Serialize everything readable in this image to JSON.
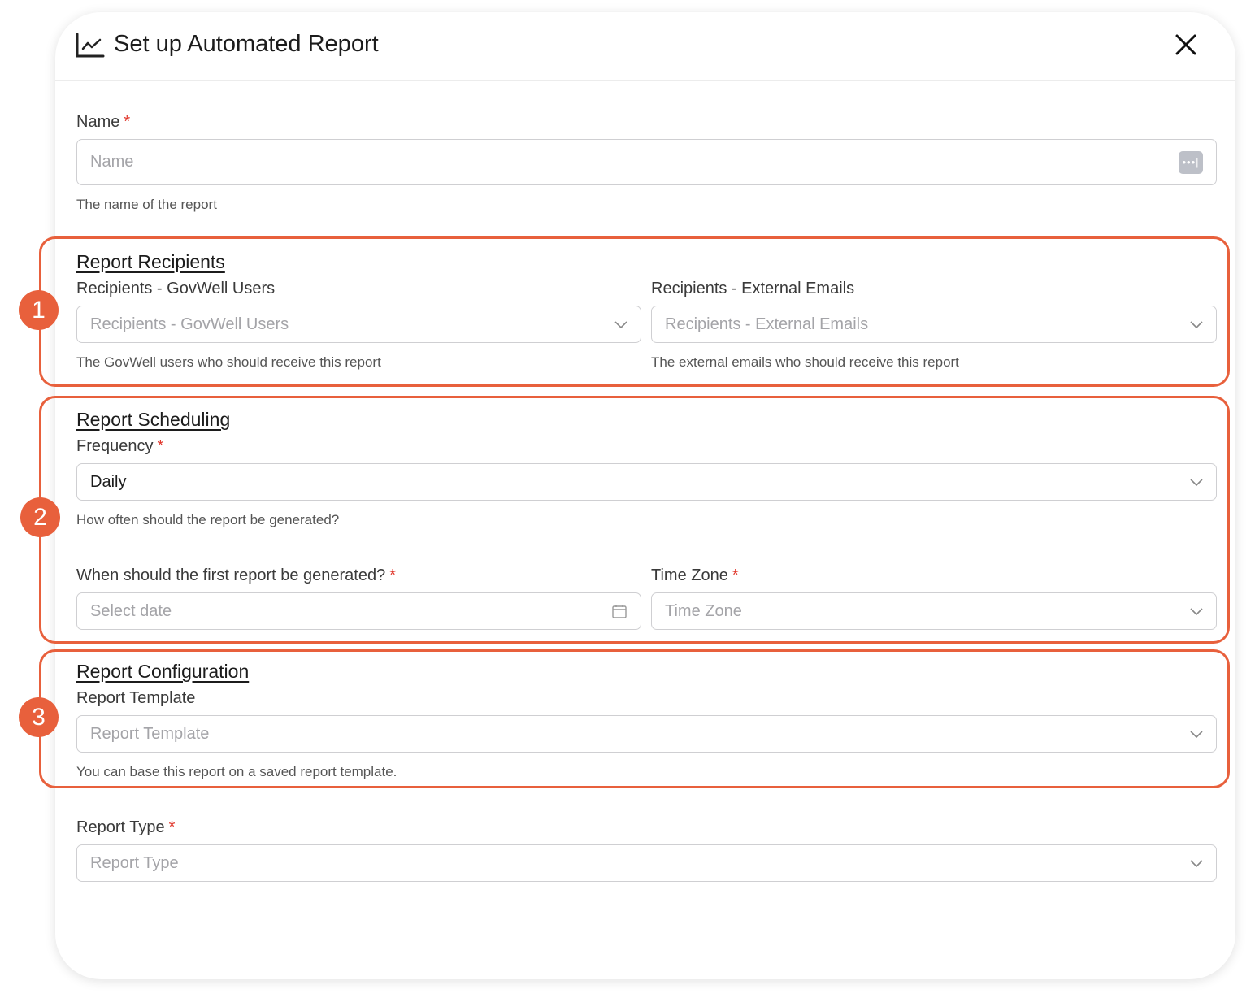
{
  "dialog": {
    "title": "Set up Automated Report",
    "title_icon": "line-chart-icon",
    "close_icon": "close-icon"
  },
  "name": {
    "label": "Name",
    "required": "*",
    "placeholder": "Name",
    "help": "The name of the report",
    "icon": "password-manager-icon"
  },
  "recipients": {
    "heading": "Report Recipients",
    "users": {
      "label": "Recipients - GovWell Users",
      "placeholder": "Recipients - GovWell Users",
      "help": "The GovWell users who should receive this report"
    },
    "external": {
      "label": "Recipients - External Emails",
      "placeholder": "Recipients - External Emails",
      "help": "The external emails who should receive this report"
    }
  },
  "scheduling": {
    "heading": "Report Scheduling",
    "frequency": {
      "label": "Frequency",
      "required": "*",
      "value": "Daily",
      "help": "How often should the report be generated?"
    },
    "first_date": {
      "label": "When should the first report be generated?",
      "required": "*",
      "placeholder": "Select date"
    },
    "timezone": {
      "label": "Time Zone",
      "required": "*",
      "placeholder": "Time Zone"
    }
  },
  "configuration": {
    "heading": "Report Configuration",
    "template": {
      "label": "Report Template",
      "placeholder": "Report Template",
      "help": "You can base this report on a saved report template."
    }
  },
  "report_type": {
    "label": "Report Type",
    "required": "*",
    "placeholder": "Report Type"
  },
  "annotations": {
    "badges": [
      "1",
      "2",
      "3"
    ],
    "color": "#E8603C"
  }
}
